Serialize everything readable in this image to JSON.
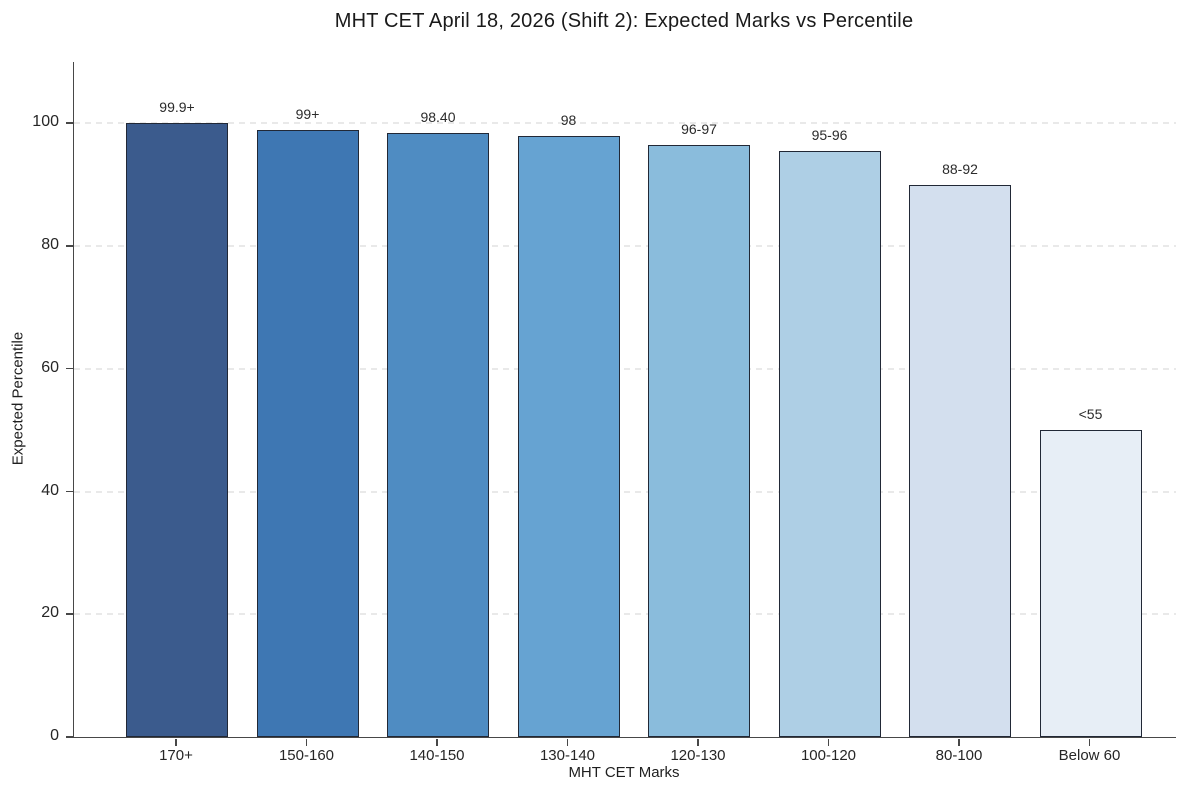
{
  "chart": {
    "title": "MHT CET April 18, 2026 (Shift 2): Expected Marks vs Percentile",
    "xlabel": "MHT CET Marks",
    "ylabel": "Expected Percentile"
  },
  "chart_data": {
    "type": "bar",
    "title": "MHT CET April 18, 2026 (Shift 2): Expected Marks vs Percentile",
    "xlabel": "MHT CET Marks",
    "ylabel": "Expected Percentile",
    "categories": [
      "170+",
      "150-160",
      "140-150",
      "130-140",
      "120-130",
      "100-120",
      "80-100",
      "Below 60"
    ],
    "values": [
      100,
      99,
      98.4,
      98,
      96.5,
      95.5,
      90,
      50
    ],
    "bar_labels": [
      "99.9+",
      "99+",
      "98.40",
      "98",
      "96-97",
      "95-96",
      "88-92",
      "<55"
    ],
    "bar_colors": [
      "#3b5b8d",
      "#3e77b3",
      "#4f8cc2",
      "#66a3d2",
      "#8abcdc",
      "#aecfe5",
      "#d3dfee",
      "#e7eef6"
    ],
    "bar_edge_color": "#212836",
    "yticks": [
      0,
      20,
      40,
      60,
      80,
      100
    ],
    "ylim": [
      0,
      110
    ],
    "grid": "horizontal-dashed",
    "legend": "none",
    "background": "#ffffff"
  }
}
